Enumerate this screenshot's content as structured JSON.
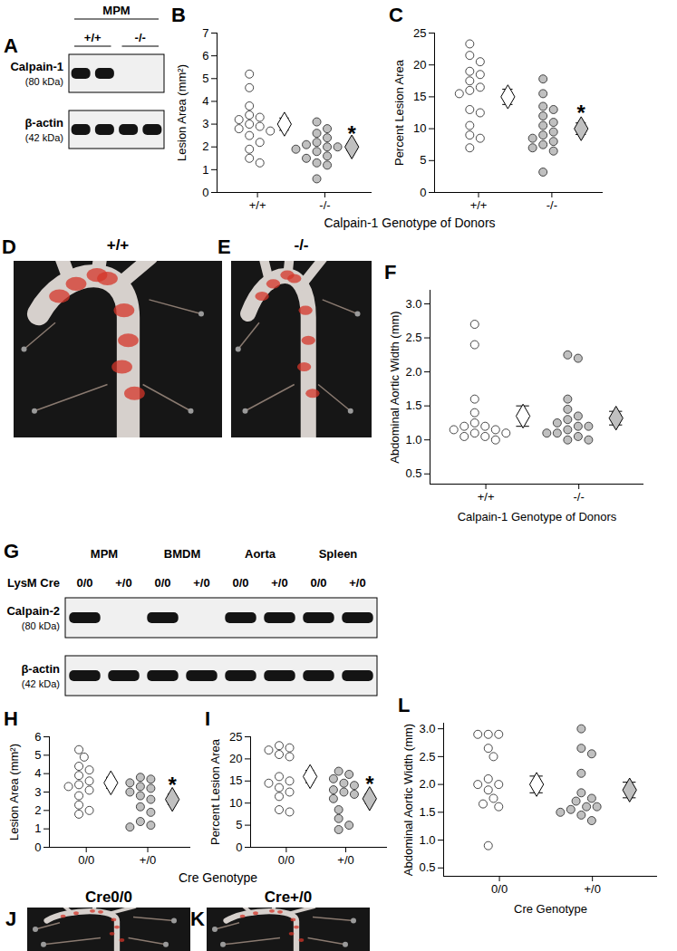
{
  "chart_data": [
    {
      "panel": "B",
      "type": "scatter",
      "marker": "circle",
      "categories": [
        "+/+",
        "-/-"
      ],
      "y_label": "Lesion Area (mm²)",
      "ylim": [
        0,
        7
      ],
      "yticks": [
        0,
        1,
        2,
        3,
        4,
        5,
        6,
        7
      ],
      "colors": [
        "#ffffff",
        "#c0c0c0"
      ],
      "values": [
        [
          5.2,
          4.6,
          3.8,
          3.4,
          3.3,
          3.2,
          3.0,
          2.9,
          2.8,
          2.7,
          2.5,
          2.2,
          1.9,
          1.5,
          1.3
        ],
        [
          3.1,
          2.8,
          2.6,
          2.4,
          2.2,
          2.1,
          2.0,
          2.0,
          1.9,
          1.8,
          1.6,
          1.5,
          1.3,
          1.2,
          0.6
        ]
      ],
      "means": [
        3.0,
        2.0
      ],
      "sem": [
        0.27,
        0.15
      ],
      "annotations": [
        {
          "category": "-/-",
          "text": "*"
        }
      ]
    },
    {
      "panel": "C",
      "type": "scatter",
      "marker": "circle",
      "categories": [
        "+/+",
        "-/-"
      ],
      "y_label": "Percent Lesion Area",
      "ylim": [
        0,
        25
      ],
      "yticks": [
        0,
        5,
        10,
        15,
        20,
        25
      ],
      "colors": [
        "#ffffff",
        "#c0c0c0"
      ],
      "values": [
        [
          23.3,
          21.5,
          20.5,
          19.0,
          18.5,
          17.5,
          16.5,
          16.0,
          15.5,
          13.0,
          12.5,
          10.5,
          9.0,
          8.5,
          7.0
        ],
        [
          17.8,
          15.5,
          13.5,
          13.0,
          12.0,
          11.0,
          10.5,
          9.5,
          9.0,
          8.5,
          8.0,
          7.5,
          7.0,
          6.5,
          3.2
        ]
      ],
      "means": [
        15.0,
        10.0
      ],
      "sem": [
        1.2,
        0.9
      ],
      "annotations": [
        {
          "category": "-/-",
          "text": "*"
        }
      ]
    },
    {
      "panel": "F",
      "type": "scatter",
      "marker": "circle",
      "categories": [
        "+/+",
        "-/-"
      ],
      "y_label": "Abdominal Aortic Width (mm)",
      "x_label": "Calpain-1 Genotype of Donors",
      "ylim": [
        0.35,
        3.2
      ],
      "yticks": [
        0.5,
        {
          "value": 1,
          "label": "1.0"
        },
        1.5,
        {
          "value": 2,
          "label": "2.0"
        },
        2.5,
        {
          "value": 3,
          "label": "3.0"
        }
      ],
      "colors": [
        "#ffffff",
        "#c0c0c0"
      ],
      "values": [
        [
          2.7,
          2.4,
          1.6,
          1.4,
          1.25,
          1.2,
          1.2,
          1.15,
          1.15,
          1.1,
          1.1,
          1.05,
          1.05,
          1.0
        ],
        [
          2.25,
          2.2,
          1.6,
          1.45,
          1.35,
          1.3,
          1.25,
          1.2,
          1.2,
          1.15,
          1.1,
          1.1,
          1.05,
          1.0,
          1.0
        ]
      ],
      "means": [
        1.35,
        1.32
      ],
      "sem": [
        0.15,
        0.1
      ],
      "annotations": []
    },
    {
      "panel": "H",
      "type": "scatter",
      "marker": "circle",
      "categories": [
        "0/0",
        "+/0"
      ],
      "y_label": "Lesion Area (mm²)",
      "ylim": [
        0,
        6
      ],
      "yticks": [
        0,
        1,
        2,
        3,
        4,
        5,
        6
      ],
      "colors": [
        "#ffffff",
        "#c0c0c0"
      ],
      "values": [
        [
          5.3,
          4.9,
          4.4,
          4.2,
          3.9,
          3.6,
          3.4,
          3.3,
          3.1,
          2.8,
          2.3,
          2.0,
          1.8
        ],
        [
          3.8,
          3.7,
          3.5,
          3.3,
          3.2,
          3.0,
          2.8,
          2.6,
          2.2,
          1.9,
          1.4,
          1.2,
          1.1
        ]
      ],
      "means": [
        3.5,
        2.6
      ],
      "sem": [
        0.3,
        0.28
      ],
      "annotations": [
        {
          "category": "+/0",
          "text": "*"
        }
      ]
    },
    {
      "panel": "I",
      "type": "scatter",
      "marker": "circle",
      "categories": [
        "0/0",
        "+/0"
      ],
      "y_label": "Percent Lesion Area",
      "ylim": [
        0,
        25
      ],
      "yticks": [
        0,
        5,
        10,
        15,
        20,
        25
      ],
      "colors": [
        "#ffffff",
        "#c0c0c0"
      ],
      "values": [
        [
          23.0,
          22.5,
          22.0,
          21.0,
          20.5,
          16.0,
          15.0,
          14.5,
          13.5,
          12.5,
          11.5,
          8.5,
          8.0
        ],
        [
          17.2,
          16.5,
          15.5,
          14.5,
          14.0,
          13.0,
          12.5,
          12.0,
          11.0,
          8.5,
          6.5,
          5.0,
          4.0
        ]
      ],
      "means": [
        16.0,
        11.0
      ],
      "sem": [
        1.4,
        1.1
      ],
      "annotations": [
        {
          "category": "+/0",
          "text": "*"
        }
      ]
    },
    {
      "panel": "L",
      "type": "scatter",
      "marker": "circle",
      "categories": [
        "0/0",
        "+/0"
      ],
      "y_label": "Abdominal Aortic Width (mm)",
      "x_label": "Cre Genotype",
      "ylim": [
        0.35,
        3.1
      ],
      "yticks": [
        0.5,
        {
          "value": 1,
          "label": "1.0"
        },
        1.5,
        {
          "value": 2,
          "label": "2.0"
        },
        2.5,
        {
          "value": 3,
          "label": "3.0"
        }
      ],
      "colors": [
        "#ffffff",
        "#c0c0c0"
      ],
      "values": [
        [
          2.9,
          2.9,
          2.9,
          2.65,
          2.5,
          2.1,
          2.0,
          2.0,
          1.9,
          1.75,
          1.65,
          1.6,
          0.9
        ],
        [
          3.0,
          2.65,
          2.55,
          2.2,
          1.85,
          1.75,
          1.7,
          1.6,
          1.6,
          1.55,
          1.5,
          1.45,
          1.35
        ]
      ],
      "means": [
        2.0,
        1.9
      ],
      "sem": [
        0.15,
        0.14
      ],
      "annotations": []
    }
  ],
  "shared_x_labels": [
    {
      "text": "Calpain-1 Genotype of Donors",
      "panels": [
        "B",
        "C"
      ]
    },
    {
      "text": "Cre Genotype",
      "panels": [
        "H",
        "I"
      ]
    }
  ],
  "blots": [
    {
      "panel": "A",
      "header_rows": [
        {
          "cells": [
            "MPM"
          ]
        },
        {
          "cells": [
            "+/+",
            "-/-"
          ]
        }
      ],
      "rows": [
        {
          "protein": "Calpain-1",
          "size": "(80 kDa)",
          "bands": [
            true,
            true,
            false,
            false
          ]
        },
        {
          "protein": "β-actin",
          "size": "(42 kDa)",
          "bands": [
            true,
            true,
            true,
            true
          ]
        }
      ]
    },
    {
      "panel": "G",
      "header_rows": [
        {
          "cells": [
            "MPM",
            "BMDM",
            "Aorta",
            "Spleen"
          ]
        },
        {
          "title": "LysM Cre",
          "cells": [
            "0/0",
            "+/0",
            "0/0",
            "+/0",
            "0/0",
            "+/0",
            "0/0",
            "+/0"
          ]
        }
      ],
      "rows": [
        {
          "protein": "Calpain-2",
          "size": "(80 kDa)",
          "bands": [
            true,
            false,
            true,
            false,
            true,
            true,
            true,
            true
          ]
        },
        {
          "protein": "β-actin",
          "size": "(42 kDa)",
          "bands": [
            true,
            true,
            true,
            true,
            true,
            true,
            true,
            true
          ]
        }
      ]
    }
  ],
  "photos": [
    {
      "panel": "D",
      "label": "+/+"
    },
    {
      "panel": "E",
      "label": "-/-"
    },
    {
      "panel": "J",
      "label": "Cre0/0"
    },
    {
      "panel": "K",
      "label": "Cre+/0"
    }
  ]
}
